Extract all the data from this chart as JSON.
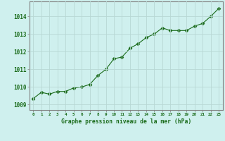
{
  "x": [
    0,
    1,
    2,
    3,
    4,
    5,
    6,
    7,
    8,
    9,
    10,
    11,
    12,
    13,
    14,
    15,
    16,
    17,
    18,
    19,
    20,
    21,
    22,
    23
  ],
  "y": [
    1009.35,
    1009.7,
    1009.6,
    1009.75,
    1009.75,
    1009.95,
    1010.0,
    1010.15,
    1010.65,
    1011.0,
    1011.6,
    1011.7,
    1012.2,
    1012.45,
    1012.8,
    1013.0,
    1013.35,
    1013.2,
    1013.2,
    1013.2,
    1013.45,
    1013.6,
    1014.0,
    1014.45
  ],
  "line_color": "#1a6b1a",
  "marker_color": "#1a6b1a",
  "bg_color": "#cff0ee",
  "plot_bg_color": "#cff0ee",
  "grid_color": "#b8d8d4",
  "title": "Graphe pression niveau de la mer (hPa)",
  "title_color": "#1a6b1a",
  "ylabel_ticks": [
    1009,
    1010,
    1011,
    1012,
    1013,
    1014
  ],
  "xlim": [
    -0.5,
    23.5
  ],
  "ylim": [
    1008.7,
    1014.85
  ],
  "tick_color": "#1a6b1a",
  "spine_color": "#808080"
}
